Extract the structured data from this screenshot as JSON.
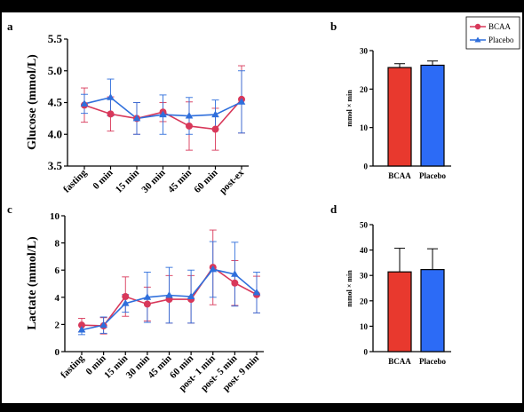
{
  "panel_letters": [
    "a",
    "b",
    "c",
    "d"
  ],
  "legend": {
    "position": "top-right",
    "entries": [
      {
        "label": "BCAA",
        "color": "#d8385a",
        "marker": "circle"
      },
      {
        "label": "Placebo",
        "color": "#2f6fdc",
        "marker": "triangle"
      }
    ]
  },
  "chart_data": [
    {
      "panel": "a",
      "type": "line",
      "ylabel": "Glucose (mmol/L)",
      "xlabel": "",
      "ylim": [
        3.5,
        5.5
      ],
      "yticks": [
        "3.5",
        "4.0",
        "4.5",
        "5.0",
        "5.5"
      ],
      "categories": [
        "fasting",
        "0 min",
        "15 min",
        "30 min",
        "45 min",
        "60 min",
        "post-ex"
      ],
      "series": [
        {
          "name": "BCAA",
          "color": "#d8385a",
          "marker": "circle",
          "values": [
            4.46,
            4.32,
            4.25,
            4.35,
            4.13,
            4.08,
            4.55
          ],
          "errors": [
            0.27,
            0.27,
            0.25,
            0.15,
            0.38,
            0.33,
            0.53
          ]
        },
        {
          "name": "Placebo",
          "color": "#2f6fdc",
          "marker": "triangle",
          "values": [
            4.48,
            4.58,
            4.25,
            4.31,
            4.29,
            4.31,
            4.51
          ],
          "errors": [
            0.15,
            0.29,
            0.25,
            0.31,
            0.29,
            0.23,
            0.49
          ]
        }
      ]
    },
    {
      "panel": "b",
      "type": "bar",
      "ylabel": "mmol × min",
      "ylim": [
        0,
        30
      ],
      "yticks": [
        "0",
        "10",
        "20",
        "30"
      ],
      "categories": [
        "BCAA",
        "Placebo"
      ],
      "values": [
        25.6,
        26.2
      ],
      "errors": [
        1.0,
        1.1
      ],
      "colors": [
        "#e8392e",
        "#2c6bf6"
      ]
    },
    {
      "panel": "c",
      "type": "line",
      "ylabel": "Lactate (mmol/L)",
      "xlabel": "",
      "ylim": [
        0,
        10
      ],
      "yticks": [
        "0",
        "2",
        "4",
        "6",
        "8",
        "10"
      ],
      "categories": [
        "fasting",
        "0 min",
        "15 min",
        "30 min",
        "45 min",
        "60 min",
        "post- 1 min",
        "post- 5 min",
        "post- 9 min"
      ],
      "series": [
        {
          "name": "BCAA",
          "color": "#d8385a",
          "marker": "circle",
          "values": [
            1.95,
            1.9,
            4.05,
            3.5,
            3.85,
            3.85,
            6.2,
            5.05,
            4.2
          ],
          "errors": [
            0.5,
            0.6,
            1.45,
            1.25,
            1.75,
            1.75,
            2.75,
            1.65,
            1.35
          ]
        },
        {
          "name": "Placebo",
          "color": "#2f6fdc",
          "marker": "triangle",
          "values": [
            1.6,
            1.95,
            3.55,
            4.0,
            4.15,
            4.05,
            6.05,
            5.7,
            4.35
          ],
          "errors": [
            0.35,
            0.6,
            0.65,
            1.85,
            2.05,
            1.95,
            2.05,
            2.35,
            1.5
          ]
        }
      ]
    },
    {
      "panel": "d",
      "type": "bar",
      "ylabel": "mmol × min",
      "ylim": [
        0,
        50
      ],
      "yticks": [
        "0",
        "10",
        "20",
        "30",
        "40",
        "50"
      ],
      "categories": [
        "BCAA",
        "Placebo"
      ],
      "values": [
        31.4,
        32.3
      ],
      "errors": [
        9.3,
        8.2
      ],
      "colors": [
        "#e8392e",
        "#2c6bf6"
      ]
    }
  ]
}
